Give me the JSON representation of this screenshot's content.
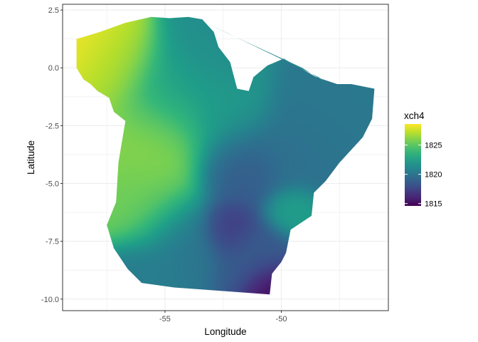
{
  "chart_data": {
    "type": "heatmap",
    "title": "",
    "xlabel": "Longitude",
    "ylabel": "Latitude",
    "xlim": [
      -59.4,
      -45.4
    ],
    "ylim": [
      -10.5,
      2.75
    ],
    "x_ticks": [
      -55,
      -50
    ],
    "x_tick_labels": [
      "-55",
      "-50"
    ],
    "y_ticks": [
      2.5,
      0.0,
      -2.5,
      -5.0,
      -7.5,
      -10.0
    ],
    "y_tick_labels": [
      "2.5",
      "0.0",
      "-2.5",
      "-5.0",
      "-7.5",
      "-10.0"
    ],
    "grid": true,
    "legend": {
      "title": "xch4",
      "position": "right",
      "range": [
        1814.6,
        1828.6
      ],
      "ticks": [
        1815,
        1820,
        1825
      ],
      "tick_labels": [
        "1815",
        "1820",
        "1825"
      ]
    },
    "colormap": "viridis",
    "region_outline_lonlat": [
      [
        -58.8,
        1.25
      ],
      [
        -57.8,
        1.55
      ],
      [
        -56.7,
        1.95
      ],
      [
        -55.6,
        2.2
      ],
      [
        -54.8,
        2.15
      ],
      [
        -54.0,
        2.2
      ],
      [
        -53.4,
        2.1
      ],
      [
        -52.9,
        1.55
      ],
      [
        -52.7,
        0.9
      ],
      [
        -52.2,
        0.25
      ],
      [
        -51.9,
        -0.9
      ],
      [
        -51.4,
        -1.0
      ],
      [
        -51.2,
        -0.4
      ],
      [
        -50.6,
        0.1
      ],
      [
        -49.9,
        0.4
      ],
      [
        -48.5,
        -0.4
      ],
      [
        -47.6,
        -0.7
      ],
      [
        -47.0,
        -0.7
      ],
      [
        -46.0,
        -0.9
      ],
      [
        -46.1,
        -2.2
      ],
      [
        -46.5,
        -3.0
      ],
      [
        -47.5,
        -4.1
      ],
      [
        -48.1,
        -4.9
      ],
      [
        -48.6,
        -5.4
      ],
      [
        -48.7,
        -6.4
      ],
      [
        -49.6,
        -7.0
      ],
      [
        -49.8,
        -8.0
      ],
      [
        -50.0,
        -8.4
      ],
      [
        -50.4,
        -8.9
      ],
      [
        -50.5,
        -9.8
      ],
      [
        -54.6,
        -9.5
      ],
      [
        -56.0,
        -9.3
      ],
      [
        -56.6,
        -8.7
      ],
      [
        -57.2,
        -7.8
      ],
      [
        -57.5,
        -6.8
      ],
      [
        -57.1,
        -5.8
      ],
      [
        -57.0,
        -4.1
      ],
      [
        -56.7,
        -2.3
      ],
      [
        -57.2,
        -1.9
      ],
      [
        -57.4,
        -1.3
      ],
      [
        -57.9,
        -1.0
      ],
      [
        -58.2,
        -0.7
      ],
      [
        -58.5,
        -0.5
      ],
      [
        -58.8,
        0.0
      ]
    ],
    "island_outline_lonlat": [
      [
        -53.6,
        2.1
      ],
      [
        -49.1,
        0.0
      ],
      [
        -48.0,
        -0.7
      ],
      [
        -48.4,
        -0.4
      ],
      [
        -52.3,
        1.5
      ]
    ],
    "field_centers": [
      {
        "lon": -58.6,
        "lat": 1.0,
        "value": 1828.5,
        "spread": 1.1
      },
      {
        "lon": -57.3,
        "lat": 0.2,
        "value": 1826.5,
        "spread": 1.1
      },
      {
        "lon": -55.4,
        "lat": -3.2,
        "value": 1826.0,
        "spread": 1.3
      },
      {
        "lon": -55.8,
        "lat": -5.8,
        "value": 1825.5,
        "spread": 1.1
      },
      {
        "lon": -54.6,
        "lat": -1.0,
        "value": 1822.5,
        "spread": 1.1
      },
      {
        "lon": -53.0,
        "lat": 0.8,
        "value": 1821.5,
        "spread": 1.1
      },
      {
        "lon": -52.5,
        "lat": -2.0,
        "value": 1822.0,
        "spread": 1.1
      },
      {
        "lon": -48.0,
        "lat": -1.8,
        "value": 1820.2,
        "spread": 1.2
      },
      {
        "lon": -49.3,
        "lat": -3.6,
        "value": 1819.8,
        "spread": 1.1
      },
      {
        "lon": -51.8,
        "lat": -4.3,
        "value": 1818.6,
        "spread": 1.0
      },
      {
        "lon": -49.5,
        "lat": -6.2,
        "value": 1822.5,
        "spread": 0.6
      },
      {
        "lon": -52.3,
        "lat": -6.9,
        "value": 1817.0,
        "spread": 0.6
      },
      {
        "lon": -54.3,
        "lat": -7.3,
        "value": 1820.0,
        "spread": 1.0
      },
      {
        "lon": -51.0,
        "lat": -8.2,
        "value": 1818.5,
        "spread": 0.9
      },
      {
        "lon": -50.4,
        "lat": -9.5,
        "value": 1814.8,
        "spread": 0.6
      },
      {
        "lon": -55.9,
        "lat": -9.1,
        "value": 1820.5,
        "spread": 0.9
      }
    ]
  }
}
